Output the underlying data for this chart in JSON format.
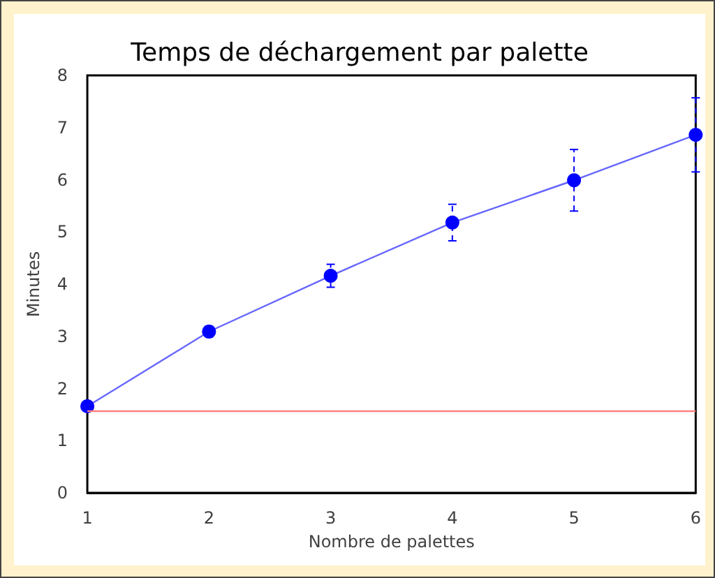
{
  "chart_data": {
    "type": "line",
    "title": "Temps de déchargement par palette",
    "xlabel": "Nombre de palettes",
    "ylabel": "Minutes",
    "x": [
      1,
      2,
      3,
      4,
      5,
      6
    ],
    "series": [
      {
        "color": "#0000ff",
        "values": [
          1.66,
          3.09,
          4.16,
          5.18,
          5.99,
          6.86
        ],
        "errors": [
          null,
          0.1,
          0.22,
          0.35,
          0.59,
          0.71
        ]
      }
    ],
    "xlim": [
      1,
      6
    ],
    "xticks": [
      1,
      2,
      3,
      4,
      5,
      6
    ],
    "ylim": [
      0,
      8
    ],
    "yticks": [
      0,
      1,
      2,
      3,
      4,
      5,
      6,
      7,
      8
    ],
    "ref_lines": [
      {
        "axis": "y",
        "value": 1.58,
        "color": "#ff8080"
      }
    ],
    "grid": false,
    "marker": "circle",
    "line_style": "solid"
  }
}
